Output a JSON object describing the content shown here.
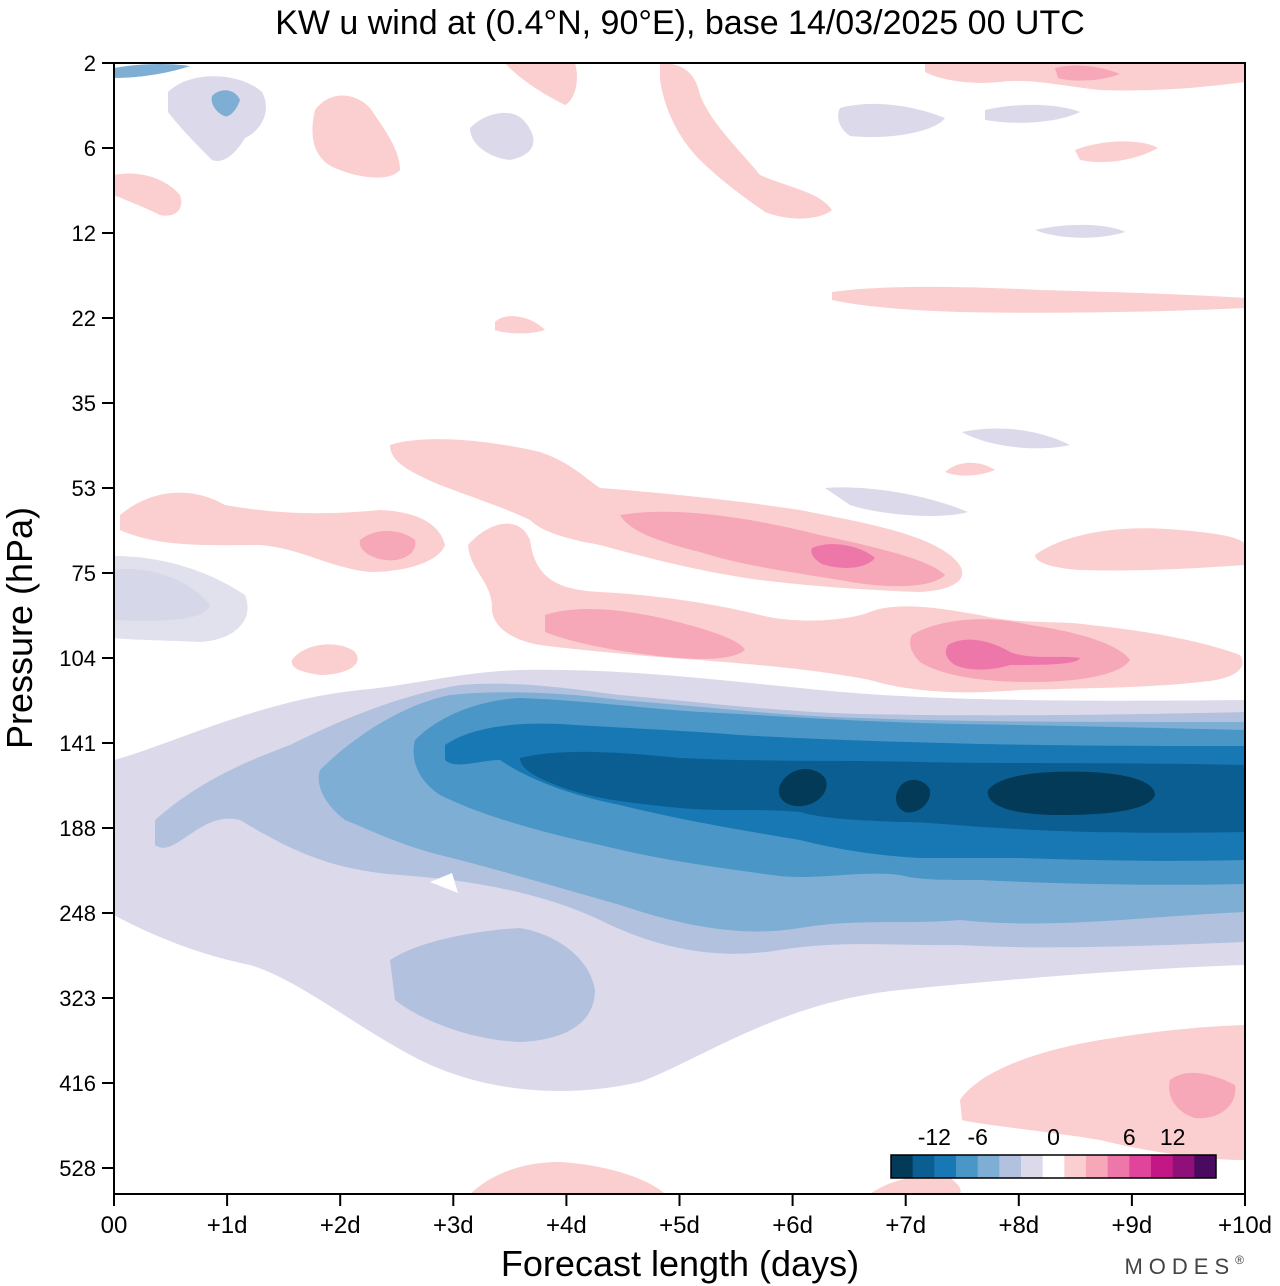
{
  "chart_data": {
    "type": "heatmap",
    "title": "KW u wind at (0.4°N, 90°E),  base 14/03/2025  00 UTC",
    "xlabel": "Forecast length (days)",
    "ylabel": "Pressure (hPa)",
    "x_ticks": [
      "00",
      "+1d",
      "+2d",
      "+3d",
      "+4d",
      "+5d",
      "+6d",
      "+7d",
      "+8d",
      "+9d",
      "+10d"
    ],
    "xlim": [
      0,
      10
    ],
    "y_ticks": [
      2,
      6,
      12,
      22,
      35,
      53,
      75,
      104,
      141,
      188,
      248,
      323,
      416,
      528
    ],
    "y_scale": "ordered pressure levels, inverted (2 hPa at top)",
    "colorbar": {
      "tick_labels": [
        "-12",
        "-6",
        "0",
        "6",
        "12"
      ],
      "tick_values": [
        -12,
        -6,
        0,
        6,
        12
      ],
      "levels": [
        -18,
        -15,
        -12,
        -9,
        -6,
        -4.5,
        -3,
        -1.5,
        1.5,
        3,
        4.5,
        6,
        9,
        12,
        15,
        18
      ],
      "colors": [
        "#033a58",
        "#0b5e92",
        "#1878b4",
        "#4a96c6",
        "#7eaed4",
        "#b2c2de",
        "#dcdaea",
        "#ffffff",
        "#fbcfcf",
        "#f6a7b8",
        "#ee77a9",
        "#e0449b",
        "#c31785",
        "#8f1079",
        "#4a0a60"
      ]
    },
    "features": [
      {
        "name": "easterly core",
        "sign": "negative",
        "x_range": [
          3,
          10
        ],
        "pressure_hPa": [
          141,
          188
        ],
        "min_value": -15
      },
      {
        "name": "easterly envelope",
        "sign": "negative",
        "x_range": [
          0,
          10
        ],
        "pressure_hPa": [
          104,
          416
        ]
      },
      {
        "name": "westerly band upper",
        "sign": "positive",
        "x_range": [
          2.5,
          7.5
        ],
        "pressure_hPa": [
          53,
          75
        ],
        "max_value": 6
      },
      {
        "name": "westerly band lower",
        "sign": "positive",
        "x_range": [
          3.5,
          10
        ],
        "pressure_hPa": [
          75,
          104
        ],
        "max_value": 6
      },
      {
        "name": "westerly lower troposphere",
        "sign": "positive",
        "x_range": [
          7.5,
          10
        ],
        "pressure_hPa": [
          323,
          528
        ]
      }
    ]
  },
  "brand": "MODES",
  "brand_mark": "®"
}
